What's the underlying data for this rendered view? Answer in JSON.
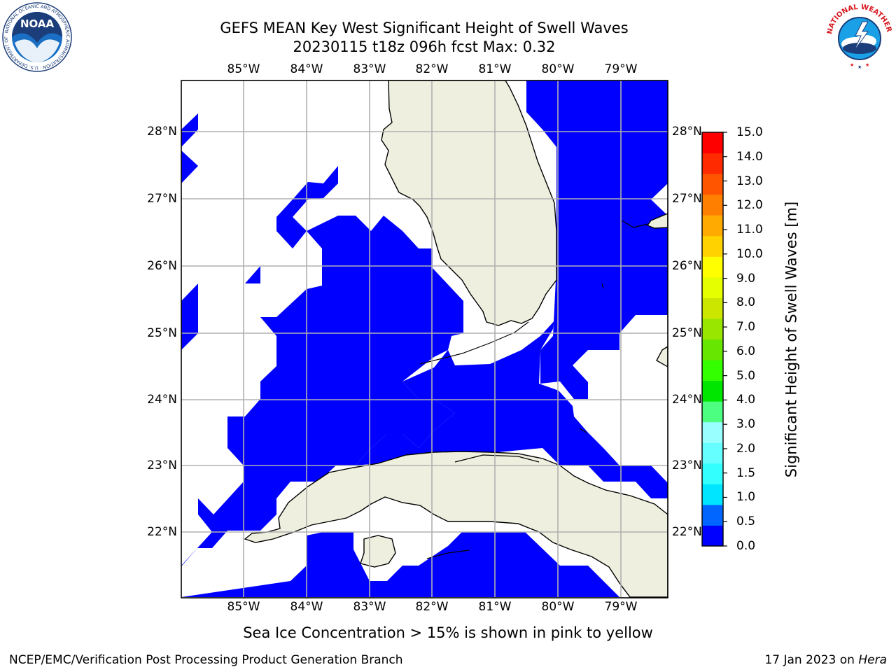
{
  "header": {
    "title_line1": "GEFS MEAN Key West Significant Height of Swell Waves",
    "title_line2": "20230115 t18z 096h fcst   Max: 0.32"
  },
  "map": {
    "extent": {
      "lon_min": -86.0,
      "lon_max": -78.25,
      "lat_min": 21.0,
      "lat_max": 28.75
    },
    "lon_ticks": [
      "85°W",
      "84°W",
      "83°W",
      "82°W",
      "81°W",
      "80°W",
      "79°W"
    ],
    "lat_ticks": [
      "28°N",
      "27°N",
      "26°N",
      "25°N",
      "24°N",
      "23°N",
      "22°N"
    ],
    "colors": {
      "land": "#efefdf",
      "wave_low": "#0000ff",
      "grid": "#b0b0b0",
      "coast": "#000000"
    }
  },
  "colorbar": {
    "label": "Significant Height of Swell Waves [m]",
    "ticks": [
      "0.0",
      "0.5",
      "1.0",
      "1.5",
      "2.0",
      "3.0",
      "4.0",
      "5.0",
      "6.0",
      "7.0",
      "8.0",
      "9.0",
      "10.0",
      "11.0",
      "12.0",
      "13.0",
      "14.0",
      "15.0"
    ],
    "colors": [
      "#0000ff",
      "#0066ff",
      "#00e5ff",
      "#33ffff",
      "#66ffff",
      "#99ffff",
      "#4dff80",
      "#00e600",
      "#33ff00",
      "#66e600",
      "#99e600",
      "#cce600",
      "#e6ff00",
      "#ffff00",
      "#ffd200",
      "#ffaa00",
      "#ff8000",
      "#ff5500",
      "#ff2a00",
      "#ff0000"
    ]
  },
  "footer": {
    "note": "Sea Ice Concentration > 15% is shown in pink to yellow",
    "credit_left": "NCEP/EMC/Verification Post Processing Product Generation Branch",
    "credit_date": "17 Jan 2023 on ",
    "credit_system": "Hera"
  },
  "logos": {
    "noaa": {
      "icon": "noaa-logo",
      "text": "NOAA",
      "ring_text": "NATIONAL OCEANIC AND ATMOSPHERIC ADMINISTRATION · U.S. DEPARTMENT OF COMMERCE"
    },
    "nws": {
      "icon": "nws-logo",
      "ring_text": "NATIONAL WEATHER SERVICE"
    }
  }
}
